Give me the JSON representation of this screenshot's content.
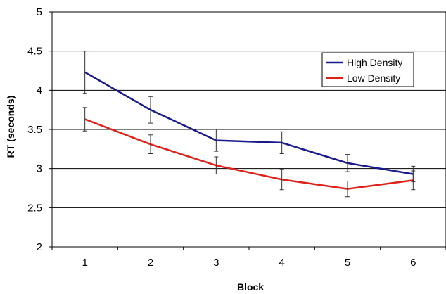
{
  "chart_data": {
    "type": "line",
    "xlabel": "Block",
    "ylabel": "RT (seconds)",
    "ylim": [
      2,
      5
    ],
    "yticks": [
      "2",
      "2.5",
      "3",
      "3.5",
      "4",
      "4.5",
      "5"
    ],
    "categories": [
      "1",
      "2",
      "3",
      "4",
      "5",
      "6"
    ],
    "grid": "horizontal",
    "legend_position": "top-right",
    "series": [
      {
        "name": "High Density",
        "color": "#1a1a8c",
        "values": [
          4.23,
          3.75,
          3.36,
          3.33,
          3.07,
          2.93
        ],
        "error": [
          0.27,
          0.17,
          0.14,
          0.14,
          0.11,
          0.1
        ]
      },
      {
        "name": "Low Density",
        "color": "#e0201a",
        "values": [
          3.63,
          3.31,
          3.04,
          2.86,
          2.74,
          2.85
        ],
        "error": [
          0.15,
          0.12,
          0.11,
          0.13,
          0.1,
          0.12
        ]
      }
    ]
  }
}
